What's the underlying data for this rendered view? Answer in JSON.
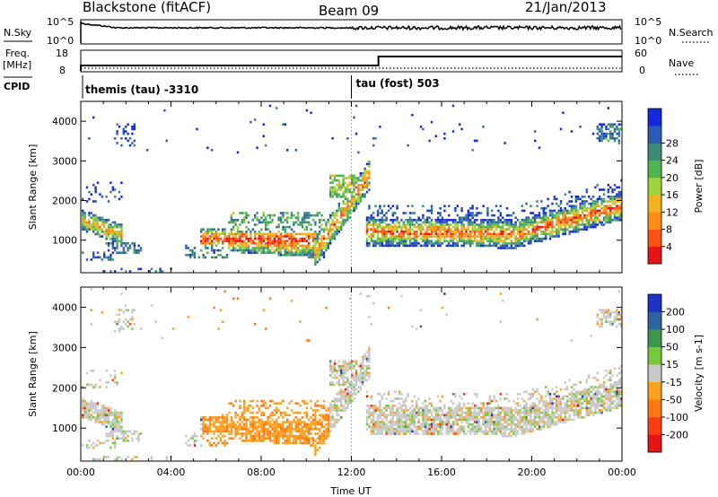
{
  "header": {
    "station": "Blackstone (fitACF)",
    "beam": "Beam 09",
    "date": "21/Jan/2013"
  },
  "top_panels": {
    "nsky_label": "N.Sky",
    "nsky_ticks": [
      "10^5",
      "10^0"
    ],
    "nsearch_label": "N.Search",
    "nsearch_ticks": [
      "10^5",
      "10^0"
    ],
    "freq_label": "Freq.",
    "freq_unit": "[MHz]",
    "freq_ticks": [
      "18",
      "8"
    ],
    "nave_label": "Nave",
    "nave_ticks": [
      "60",
      "0"
    ],
    "cpid_label": "CPID",
    "cpid_segments": [
      {
        "label": "themis (tau) -3310",
        "start_hour": 0
      },
      {
        "label": "tau (fost) 503",
        "start_hour": 12
      }
    ]
  },
  "chart_data": [
    {
      "type": "heatmap",
      "name": "power",
      "xlabel": "",
      "ylabel": "Slant Range [km]",
      "xlim": [
        0,
        24
      ],
      "ylim": [
        180,
        4500
      ],
      "yticks": [
        1000,
        2000,
        3000,
        4000
      ],
      "colorbar": {
        "label": "Power [dB]",
        "ticks": [
          "4",
          "8",
          "12",
          "16",
          "20",
          "24",
          "28"
        ],
        "colors": [
          "#1428dc",
          "#2d5ab4",
          "#3c8c78",
          "#50b450",
          "#a0d23c",
          "#f0b41e",
          "#ff8c14",
          "#ff5014",
          "#e61414"
        ]
      }
    },
    {
      "type": "heatmap",
      "name": "velocity",
      "xlabel": "Time UT",
      "ylabel": "Slant Range [km]",
      "xlim": [
        0,
        24
      ],
      "ylim": [
        180,
        4500
      ],
      "xticks": [
        "00:00",
        "04:00",
        "08:00",
        "12:00",
        "16:00",
        "20:00",
        "00:00"
      ],
      "yticks": [
        1000,
        2000,
        3000,
        4000
      ],
      "colorbar": {
        "label": "Velocity [m s-1]",
        "ticks": [
          "200",
          "100",
          "50",
          "15",
          "-15",
          "-50",
          "-100",
          "-200"
        ],
        "colors": [
          "#1e32c8",
          "#2d64a0",
          "#3c9650",
          "#78c83c",
          "#c8c8c8",
          "#ffa01e",
          "#ff7814",
          "#ff3c14",
          "#e61414"
        ]
      }
    }
  ]
}
